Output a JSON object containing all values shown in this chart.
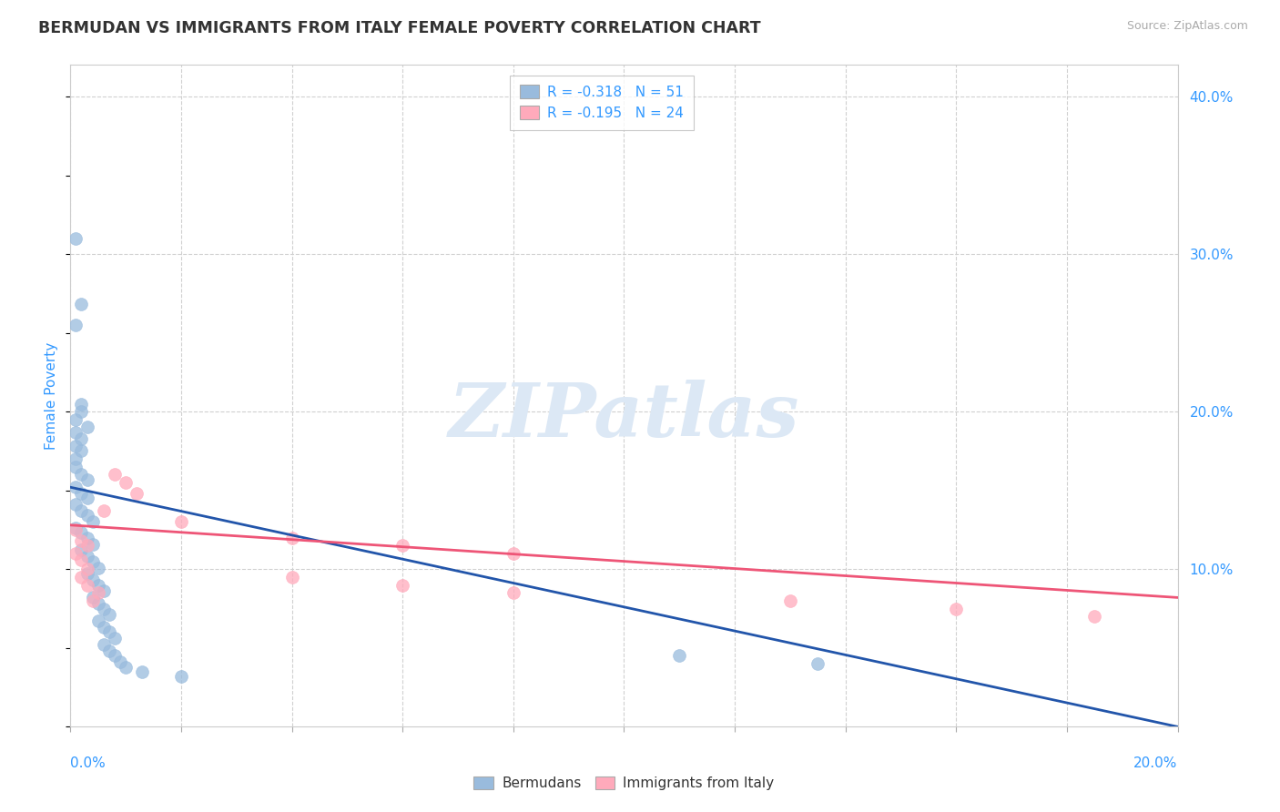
{
  "title": "BERMUDAN VS IMMIGRANTS FROM ITALY FEMALE POVERTY CORRELATION CHART",
  "source": "Source: ZipAtlas.com",
  "ylabel": "Female Poverty",
  "xlim": [
    0.0,
    0.2
  ],
  "ylim": [
    0.0,
    0.42
  ],
  "watermark": "ZIPatlas",
  "blue_R": "-0.318",
  "blue_N": "51",
  "pink_R": "-0.195",
  "pink_N": "24",
  "blue_points": [
    [
      0.001,
      0.31
    ],
    [
      0.002,
      0.268
    ],
    [
      0.001,
      0.255
    ],
    [
      0.002,
      0.205
    ],
    [
      0.002,
      0.2
    ],
    [
      0.001,
      0.195
    ],
    [
      0.003,
      0.19
    ],
    [
      0.001,
      0.187
    ],
    [
      0.002,
      0.183
    ],
    [
      0.001,
      0.178
    ],
    [
      0.002,
      0.175
    ],
    [
      0.001,
      0.17
    ],
    [
      0.001,
      0.165
    ],
    [
      0.002,
      0.16
    ],
    [
      0.003,
      0.157
    ],
    [
      0.001,
      0.152
    ],
    [
      0.002,
      0.148
    ],
    [
      0.003,
      0.145
    ],
    [
      0.001,
      0.141
    ],
    [
      0.002,
      0.137
    ],
    [
      0.003,
      0.134
    ],
    [
      0.004,
      0.13
    ],
    [
      0.001,
      0.126
    ],
    [
      0.002,
      0.123
    ],
    [
      0.003,
      0.12
    ],
    [
      0.004,
      0.116
    ],
    [
      0.002,
      0.112
    ],
    [
      0.003,
      0.108
    ],
    [
      0.004,
      0.105
    ],
    [
      0.005,
      0.101
    ],
    [
      0.003,
      0.097
    ],
    [
      0.004,
      0.093
    ],
    [
      0.005,
      0.09
    ],
    [
      0.006,
      0.086
    ],
    [
      0.004,
      0.082
    ],
    [
      0.005,
      0.078
    ],
    [
      0.006,
      0.075
    ],
    [
      0.007,
      0.071
    ],
    [
      0.005,
      0.067
    ],
    [
      0.006,
      0.063
    ],
    [
      0.007,
      0.06
    ],
    [
      0.008,
      0.056
    ],
    [
      0.006,
      0.052
    ],
    [
      0.007,
      0.048
    ],
    [
      0.008,
      0.045
    ],
    [
      0.009,
      0.041
    ],
    [
      0.01,
      0.038
    ],
    [
      0.013,
      0.035
    ],
    [
      0.02,
      0.032
    ],
    [
      0.11,
      0.045
    ],
    [
      0.135,
      0.04
    ]
  ],
  "pink_points": [
    [
      0.001,
      0.125
    ],
    [
      0.002,
      0.118
    ],
    [
      0.003,
      0.115
    ],
    [
      0.001,
      0.11
    ],
    [
      0.002,
      0.106
    ],
    [
      0.003,
      0.1
    ],
    [
      0.002,
      0.095
    ],
    [
      0.003,
      0.09
    ],
    [
      0.005,
      0.085
    ],
    [
      0.004,
      0.08
    ],
    [
      0.006,
      0.137
    ],
    [
      0.008,
      0.16
    ],
    [
      0.01,
      0.155
    ],
    [
      0.012,
      0.148
    ],
    [
      0.02,
      0.13
    ],
    [
      0.04,
      0.12
    ],
    [
      0.06,
      0.115
    ],
    [
      0.08,
      0.11
    ],
    [
      0.04,
      0.095
    ],
    [
      0.06,
      0.09
    ],
    [
      0.08,
      0.085
    ],
    [
      0.13,
      0.08
    ],
    [
      0.16,
      0.075
    ],
    [
      0.185,
      0.07
    ]
  ],
  "blue_line_x": [
    0.0,
    0.2
  ],
  "blue_line_y": [
    0.152,
    0.0
  ],
  "pink_line_x": [
    0.0,
    0.2
  ],
  "pink_line_y": [
    0.128,
    0.082
  ],
  "background_color": "#ffffff",
  "plot_bg_color": "#ffffff",
  "blue_color": "#99bbdd",
  "pink_color": "#ffaabb",
  "blue_line_color": "#2255aa",
  "pink_line_color": "#ee5577",
  "grid_color": "#d0d0d0",
  "title_color": "#333333",
  "axis_label_color": "#3399ff",
  "watermark_color": "#dce8f5"
}
